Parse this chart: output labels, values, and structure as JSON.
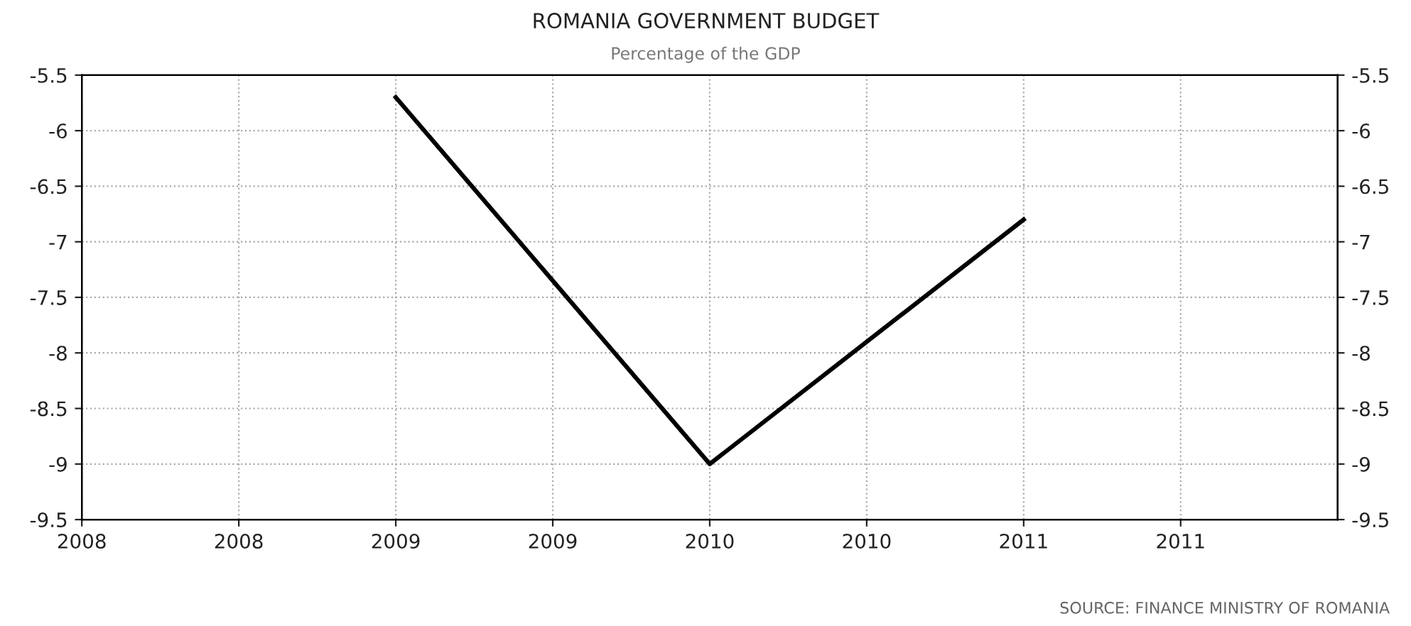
{
  "chart_data": {
    "type": "line",
    "title": "ROMANIA GOVERNMENT BUDGET",
    "subtitle": "Percentage of the GDP",
    "annotations": [
      "SOURCE: FINANCE MINISTRY OF ROMANIA"
    ],
    "x": [
      2009,
      2010,
      2011
    ],
    "series": [
      {
        "color": "#000000",
        "values": [
          -5.7,
          -9.0,
          -6.8
        ]
      }
    ],
    "xlim": [
      2008,
      2012
    ],
    "xticks": [
      2008,
      {
        "value": 2008.5,
        "label": "2008"
      },
      2009,
      {
        "value": 2009.5,
        "label": "2009"
      },
      2010,
      {
        "value": 2010.5,
        "label": "2010"
      },
      2011,
      {
        "value": 2011.5,
        "label": "2011"
      }
    ],
    "ylim": [
      -9.5,
      -5.5
    ],
    "yticks": [
      -9.5,
      -9,
      -8.5,
      -8,
      -7.5,
      -7,
      -6.5,
      -6,
      -5.5
    ],
    "y2lim": [
      -9.5,
      -5.5
    ],
    "y2ticks": [
      -9.5,
      -9,
      -8.5,
      -8,
      -7.5,
      -7,
      -6.5,
      -6,
      -5.5
    ],
    "grid": true,
    "marker": "none",
    "line_style": "solid"
  }
}
